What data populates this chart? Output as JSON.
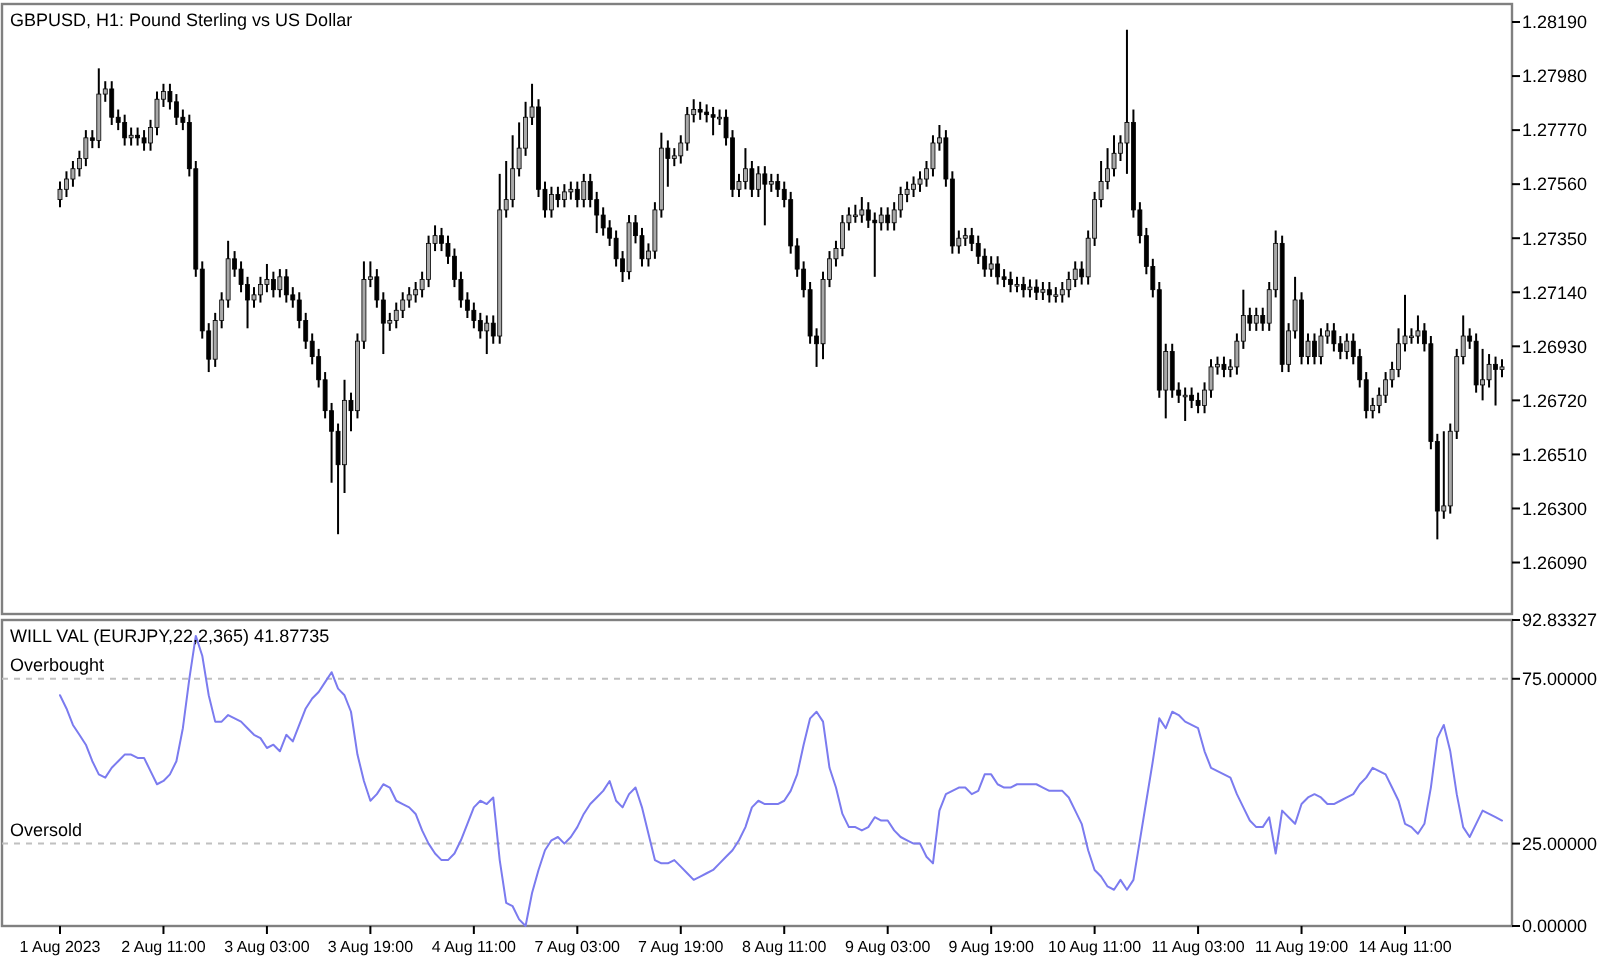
{
  "chart_data": [
    {
      "type": "candlestick",
      "title": "GBPUSD, H1:  Pound Sterling vs US Dollar",
      "tick_labels": "y",
      "categories": [
        "1 Aug 2023",
        null,
        null,
        null,
        null,
        null,
        null,
        null,
        null,
        null,
        null,
        null,
        null,
        null,
        null,
        null,
        "2 Aug 11:00",
        null,
        null,
        null,
        null,
        null,
        null,
        null,
        null,
        null,
        null,
        null,
        null,
        null,
        null,
        null,
        "3 Aug 03:00",
        null,
        null,
        null,
        null,
        null,
        null,
        null,
        null,
        null,
        null,
        null,
        null,
        null,
        null,
        null,
        "3 Aug 19:00",
        null,
        null,
        null,
        null,
        null,
        null,
        null,
        null,
        null,
        null,
        null,
        null,
        null,
        null,
        null,
        "4 Aug 11:00",
        null,
        null,
        null,
        null,
        null,
        null,
        null,
        null,
        null,
        null,
        null,
        null,
        null,
        null,
        null,
        "7 Aug 03:00",
        null,
        null,
        null,
        null,
        null,
        null,
        null,
        null,
        null,
        null,
        null,
        null,
        null,
        null,
        null,
        "7 Aug 19:00",
        null,
        null,
        null,
        null,
        null,
        null,
        null,
        null,
        null,
        null,
        null,
        null,
        null,
        null,
        null,
        "8 Aug 11:00",
        null,
        null,
        null,
        null,
        null,
        null,
        null,
        null,
        null,
        null,
        null,
        null,
        null,
        null,
        null,
        "9 Aug 03:00",
        null,
        null,
        null,
        null,
        null,
        null,
        null,
        null,
        null,
        null,
        null,
        null,
        null,
        null,
        null,
        "9 Aug 19:00",
        null,
        null,
        null,
        null,
        null,
        null,
        null,
        null,
        null,
        null,
        null,
        null,
        null,
        null,
        null,
        "10 Aug 11:00",
        null,
        null,
        null,
        null,
        null,
        null,
        null,
        null,
        null,
        null,
        null,
        null,
        null,
        null,
        null,
        "11 Aug 03:00",
        null,
        null,
        null,
        null,
        null,
        null,
        null,
        null,
        null,
        null,
        null,
        null,
        null,
        null,
        null,
        "11 Aug 19:00",
        null,
        null,
        null,
        null,
        null,
        null,
        null,
        null,
        null,
        null,
        null,
        null,
        null,
        null,
        null,
        "14 Aug 11:00",
        null,
        null,
        null,
        null,
        null,
        null,
        null,
        null,
        null,
        null,
        null,
        null,
        null,
        null,
        null
      ],
      "ylim": [
        1.2589,
        1.2826
      ],
      "yticks": [
        {
          "value": 1.2819,
          "label": "1.28190"
        },
        {
          "value": 1.2798,
          "label": "1.27980"
        },
        {
          "value": 1.2777,
          "label": "1.27770"
        },
        {
          "value": 1.2756,
          "label": "1.27560"
        },
        {
          "value": 1.2735,
          "label": "1.27350"
        },
        {
          "value": 1.2714,
          "label": "1.27140"
        },
        {
          "value": 1.2693,
          "label": "1.26930"
        },
        {
          "value": 1.2672,
          "label": "1.26720"
        },
        {
          "value": 1.2651,
          "label": "1.26510"
        },
        {
          "value": 1.263,
          "label": "1.26300"
        },
        {
          "value": 1.2609,
          "label": "1.26090"
        }
      ],
      "ohlc": [
        [
          1.275,
          1.2757,
          1.2747,
          1.2754
        ],
        [
          1.2754,
          1.2761,
          1.2751,
          1.2758
        ],
        [
          1.2758,
          1.2765,
          1.2755,
          1.2762
        ],
        [
          1.2762,
          1.2769,
          1.2759,
          1.2766
        ],
        [
          1.2766,
          1.2777,
          1.2763,
          1.2774
        ],
        [
          1.2774,
          1.2777,
          1.277,
          1.2773
        ],
        [
          1.2773,
          1.2801,
          1.277,
          1.2791
        ],
        [
          1.2791,
          1.2796,
          1.2788,
          1.2793
        ],
        [
          1.2793,
          1.2796,
          1.2779,
          1.2782
        ],
        [
          1.2782,
          1.2785,
          1.2777,
          1.278
        ],
        [
          1.278,
          1.2783,
          1.2771,
          1.2774
        ],
        [
          1.2774,
          1.2778,
          1.2771,
          1.2775
        ],
        [
          1.2775,
          1.2778,
          1.2771,
          1.2774
        ],
        [
          1.2774,
          1.2777,
          1.2769,
          1.2772
        ],
        [
          1.2772,
          1.2781,
          1.2769,
          1.2778
        ],
        [
          1.2778,
          1.2792,
          1.2775,
          1.2789
        ],
        [
          1.2789,
          1.2795,
          1.2786,
          1.2792
        ],
        [
          1.2792,
          1.2795,
          1.2785,
          1.2788
        ],
        [
          1.2788,
          1.2791,
          1.2779,
          1.2782
        ],
        [
          1.2782,
          1.2785,
          1.2777,
          1.278
        ],
        [
          1.278,
          1.2783,
          1.2759,
          1.2762
        ],
        [
          1.2762,
          1.2765,
          1.272,
          1.2723
        ],
        [
          1.2723,
          1.2726,
          1.2696,
          1.2699
        ],
        [
          1.2699,
          1.2702,
          1.2683,
          1.2688
        ],
        [
          1.2688,
          1.2706,
          1.2685,
          1.2703
        ],
        [
          1.2703,
          1.2714,
          1.27,
          1.2711
        ],
        [
          1.2711,
          1.2734,
          1.2708,
          1.2727
        ],
        [
          1.2727,
          1.273,
          1.272,
          1.2723
        ],
        [
          1.2723,
          1.2726,
          1.2714,
          1.2717
        ],
        [
          1.2717,
          1.272,
          1.27,
          1.2711
        ],
        [
          1.2711,
          1.2716,
          1.2708,
          1.2713
        ],
        [
          1.2713,
          1.272,
          1.271,
          1.2717
        ],
        [
          1.2717,
          1.2725,
          1.2714,
          1.2719
        ],
        [
          1.2719,
          1.2722,
          1.2712,
          1.2715
        ],
        [
          1.2715,
          1.2723,
          1.2712,
          1.272
        ],
        [
          1.272,
          1.2723,
          1.271,
          1.2713
        ],
        [
          1.2713,
          1.2716,
          1.2708,
          1.2711
        ],
        [
          1.2711,
          1.2714,
          1.27,
          1.2703
        ],
        [
          1.2703,
          1.2706,
          1.2692,
          1.2695
        ],
        [
          1.2695,
          1.2698,
          1.2686,
          1.2689
        ],
        [
          1.2689,
          1.2692,
          1.2677,
          1.268
        ],
        [
          1.268,
          1.2683,
          1.2665,
          1.2668
        ],
        [
          1.2668,
          1.2671,
          1.264,
          1.266
        ],
        [
          1.266,
          1.2663,
          1.262,
          1.2647
        ],
        [
          1.2647,
          1.268,
          1.2636,
          1.2672
        ],
        [
          1.2672,
          1.2675,
          1.266,
          1.2668
        ],
        [
          1.2668,
          1.2698,
          1.2665,
          1.2695
        ],
        [
          1.2695,
          1.2726,
          1.2692,
          1.2719
        ],
        [
          1.2719,
          1.2726,
          1.2716,
          1.272
        ],
        [
          1.272,
          1.2723,
          1.2708,
          1.2711
        ],
        [
          1.2711,
          1.2714,
          1.269,
          1.2702
        ],
        [
          1.2702,
          1.2706,
          1.2699,
          1.2703
        ],
        [
          1.2703,
          1.271,
          1.27,
          1.2707
        ],
        [
          1.2707,
          1.2714,
          1.2704,
          1.2711
        ],
        [
          1.2711,
          1.2716,
          1.2708,
          1.2713
        ],
        [
          1.2713,
          1.2718,
          1.271,
          1.2715
        ],
        [
          1.2715,
          1.2722,
          1.2712,
          1.2719
        ],
        [
          1.2719,
          1.2736,
          1.2716,
          1.2733
        ],
        [
          1.2733,
          1.274,
          1.273,
          1.2736
        ],
        [
          1.2736,
          1.2739,
          1.273,
          1.2733
        ],
        [
          1.2733,
          1.2736,
          1.2725,
          1.2728
        ],
        [
          1.2728,
          1.2731,
          1.2716,
          1.2719
        ],
        [
          1.2719,
          1.2722,
          1.2708,
          1.2711
        ],
        [
          1.2711,
          1.2714,
          1.2704,
          1.2707
        ],
        [
          1.2707,
          1.271,
          1.27,
          1.2703
        ],
        [
          1.2703,
          1.2706,
          1.2696,
          1.2699
        ],
        [
          1.2699,
          1.2705,
          1.269,
          1.2702
        ],
        [
          1.2702,
          1.2705,
          1.2694,
          1.2697
        ],
        [
          1.2697,
          1.276,
          1.2694,
          1.2746
        ],
        [
          1.2746,
          1.2765,
          1.2743,
          1.275
        ],
        [
          1.275,
          1.2775,
          1.2747,
          1.2762
        ],
        [
          1.2762,
          1.278,
          1.2759,
          1.277
        ],
        [
          1.277,
          1.2788,
          1.2767,
          1.2782
        ],
        [
          1.2782,
          1.2795,
          1.2779,
          1.2786
        ],
        [
          1.2786,
          1.2789,
          1.2751,
          1.2754
        ],
        [
          1.2754,
          1.2757,
          1.2743,
          1.2746
        ],
        [
          1.2746,
          1.2755,
          1.2743,
          1.2752
        ],
        [
          1.2752,
          1.2755,
          1.2747,
          1.275
        ],
        [
          1.275,
          1.2756,
          1.2747,
          1.2753
        ],
        [
          1.2753,
          1.2757,
          1.275,
          1.2754
        ],
        [
          1.2754,
          1.2757,
          1.2747,
          1.275
        ],
        [
          1.275,
          1.276,
          1.2747,
          1.2757
        ],
        [
          1.2757,
          1.276,
          1.2747,
          1.275
        ],
        [
          1.275,
          1.2753,
          1.2737,
          1.2744
        ],
        [
          1.2744,
          1.2747,
          1.2736,
          1.2739
        ],
        [
          1.2739,
          1.2742,
          1.2732,
          1.2735
        ],
        [
          1.2735,
          1.2738,
          1.2724,
          1.2727
        ],
        [
          1.2727,
          1.273,
          1.2718,
          1.2722
        ],
        [
          1.2722,
          1.2744,
          1.2719,
          1.2741
        ],
        [
          1.2741,
          1.2744,
          1.2733,
          1.2736
        ],
        [
          1.2736,
          1.2739,
          1.2724,
          1.2727
        ],
        [
          1.2727,
          1.2733,
          1.2724,
          1.273
        ],
        [
          1.273,
          1.2749,
          1.2727,
          1.2746
        ],
        [
          1.2746,
          1.2776,
          1.2743,
          1.277
        ],
        [
          1.277,
          1.2773,
          1.2755,
          1.2766
        ],
        [
          1.2766,
          1.277,
          1.2763,
          1.2767
        ],
        [
          1.2767,
          1.2775,
          1.2764,
          1.2772
        ],
        [
          1.2772,
          1.2786,
          1.2769,
          1.2783
        ],
        [
          1.2783,
          1.2789,
          1.278,
          1.2785
        ],
        [
          1.2785,
          1.2788,
          1.2781,
          1.2784
        ],
        [
          1.2784,
          1.2787,
          1.278,
          1.2783
        ],
        [
          1.2783,
          1.2786,
          1.2775,
          1.2782
        ],
        [
          1.2782,
          1.2785,
          1.2779,
          1.2782
        ],
        [
          1.2782,
          1.2785,
          1.2771,
          1.2774
        ],
        [
          1.2774,
          1.2777,
          1.2751,
          1.2754
        ],
        [
          1.2754,
          1.276,
          1.2751,
          1.2757
        ],
        [
          1.2757,
          1.277,
          1.2754,
          1.2762
        ],
        [
          1.2762,
          1.2765,
          1.2751,
          1.2754
        ],
        [
          1.2754,
          1.2763,
          1.2751,
          1.276
        ],
        [
          1.276,
          1.2763,
          1.274,
          1.2756
        ],
        [
          1.2756,
          1.276,
          1.2753,
          1.2757
        ],
        [
          1.2757,
          1.276,
          1.2751,
          1.2754
        ],
        [
          1.2754,
          1.2757,
          1.2747,
          1.275
        ],
        [
          1.275,
          1.2753,
          1.2729,
          1.2732
        ],
        [
          1.2732,
          1.2735,
          1.272,
          1.2723
        ],
        [
          1.2723,
          1.2726,
          1.2712,
          1.2715
        ],
        [
          1.2715,
          1.2718,
          1.2694,
          1.2697
        ],
        [
          1.2697,
          1.27,
          1.2685,
          1.2694
        ],
        [
          1.2694,
          1.2722,
          1.2688,
          1.2719
        ],
        [
          1.2719,
          1.273,
          1.2716,
          1.2727
        ],
        [
          1.2727,
          1.2734,
          1.2724,
          1.2731
        ],
        [
          1.2731,
          1.2744,
          1.2728,
          1.2741
        ],
        [
          1.2741,
          1.2747,
          1.2738,
          1.2744
        ],
        [
          1.2744,
          1.2748,
          1.2741,
          1.2744
        ],
        [
          1.2744,
          1.2751,
          1.2741,
          1.2746
        ],
        [
          1.2746,
          1.2749,
          1.2739,
          1.2742
        ],
        [
          1.2742,
          1.2745,
          1.272,
          1.2741
        ],
        [
          1.2741,
          1.2747,
          1.2738,
          1.2744
        ],
        [
          1.2744,
          1.2747,
          1.2738,
          1.2741
        ],
        [
          1.2741,
          1.2749,
          1.2738,
          1.2746
        ],
        [
          1.2746,
          1.2755,
          1.2743,
          1.2752
        ],
        [
          1.2752,
          1.2757,
          1.2749,
          1.2754
        ],
        [
          1.2754,
          1.2759,
          1.2751,
          1.2756
        ],
        [
          1.2756,
          1.2761,
          1.2753,
          1.2758
        ],
        [
          1.2758,
          1.2765,
          1.2755,
          1.2762
        ],
        [
          1.2762,
          1.2775,
          1.2759,
          1.2772
        ],
        [
          1.2772,
          1.2779,
          1.2769,
          1.2774
        ],
        [
          1.2774,
          1.2777,
          1.2755,
          1.2758
        ],
        [
          1.2758,
          1.2761,
          1.2729,
          1.2732
        ],
        [
          1.2732,
          1.2738,
          1.2729,
          1.2735
        ],
        [
          1.2735,
          1.2739,
          1.2732,
          1.2736
        ],
        [
          1.2736,
          1.2739,
          1.273,
          1.2733
        ],
        [
          1.2733,
          1.2736,
          1.2725,
          1.2728
        ],
        [
          1.2728,
          1.2731,
          1.272,
          1.2723
        ],
        [
          1.2723,
          1.2728,
          1.272,
          1.2725
        ],
        [
          1.2725,
          1.2728,
          1.2717,
          1.272
        ],
        [
          1.272,
          1.2723,
          1.2716,
          1.2719
        ],
        [
          1.2719,
          1.2722,
          1.2714,
          1.2717
        ],
        [
          1.2717,
          1.272,
          1.2714,
          1.2717
        ],
        [
          1.2717,
          1.272,
          1.2712,
          1.2715
        ],
        [
          1.2715,
          1.2719,
          1.2712,
          1.2716
        ],
        [
          1.2716,
          1.2719,
          1.2711,
          1.2714
        ],
        [
          1.2714,
          1.2718,
          1.2711,
          1.2715
        ],
        [
          1.2715,
          1.2718,
          1.271,
          1.2713
        ],
        [
          1.2713,
          1.2716,
          1.271,
          1.2713
        ],
        [
          1.2713,
          1.2718,
          1.271,
          1.2715
        ],
        [
          1.2715,
          1.2722,
          1.2712,
          1.2719
        ],
        [
          1.2719,
          1.2726,
          1.2716,
          1.2723
        ],
        [
          1.2723,
          1.2726,
          1.2717,
          1.272
        ],
        [
          1.272,
          1.2738,
          1.2717,
          1.2735
        ],
        [
          1.2735,
          1.2753,
          1.2732,
          1.275
        ],
        [
          1.275,
          1.2765,
          1.2747,
          1.2757
        ],
        [
          1.2757,
          1.277,
          1.2754,
          1.2762
        ],
        [
          1.2762,
          1.2775,
          1.2759,
          1.2768
        ],
        [
          1.2768,
          1.2775,
          1.2765,
          1.2772
        ],
        [
          1.2772,
          1.2816,
          1.276,
          1.278
        ],
        [
          1.278,
          1.2785,
          1.2743,
          1.2746
        ],
        [
          1.2746,
          1.2749,
          1.2733,
          1.2736
        ],
        [
          1.2736,
          1.2739,
          1.2721,
          1.2724
        ],
        [
          1.2724,
          1.2727,
          1.2712,
          1.2715
        ],
        [
          1.2715,
          1.2718,
          1.2673,
          1.2676
        ],
        [
          1.2676,
          1.2694,
          1.2665,
          1.2691
        ],
        [
          1.2691,
          1.2694,
          1.2673,
          1.2676
        ],
        [
          1.2676,
          1.2679,
          1.2671,
          1.2674
        ],
        [
          1.2674,
          1.2677,
          1.2664,
          1.2674
        ],
        [
          1.2674,
          1.2677,
          1.2669,
          1.2672
        ],
        [
          1.2672,
          1.2675,
          1.2667,
          1.267
        ],
        [
          1.267,
          1.2679,
          1.2667,
          1.2676
        ],
        [
          1.2676,
          1.2688,
          1.2673,
          1.2685
        ],
        [
          1.2685,
          1.2689,
          1.2682,
          1.2686
        ],
        [
          1.2686,
          1.2689,
          1.2681,
          1.2684
        ],
        [
          1.2684,
          1.2688,
          1.2681,
          1.2685
        ],
        [
          1.2685,
          1.2698,
          1.2682,
          1.2695
        ],
        [
          1.2695,
          1.2715,
          1.2692,
          1.2705
        ],
        [
          1.2705,
          1.2708,
          1.2699,
          1.2702
        ],
        [
          1.2702,
          1.2708,
          1.2699,
          1.2705
        ],
        [
          1.2705,
          1.2708,
          1.2699,
          1.2702
        ],
        [
          1.2702,
          1.2718,
          1.2699,
          1.2715
        ],
        [
          1.2715,
          1.2738,
          1.2712,
          1.2733
        ],
        [
          1.2733,
          1.2736,
          1.2683,
          1.2686
        ],
        [
          1.2686,
          1.2702,
          1.2683,
          1.2699
        ],
        [
          1.2699,
          1.272,
          1.2696,
          1.2711
        ],
        [
          1.2711,
          1.2714,
          1.2686,
          1.2689
        ],
        [
          1.2689,
          1.2698,
          1.2686,
          1.2695
        ],
        [
          1.2695,
          1.2698,
          1.2686,
          1.2689
        ],
        [
          1.2689,
          1.27,
          1.2686,
          1.2697
        ],
        [
          1.2697,
          1.2702,
          1.2694,
          1.2699
        ],
        [
          1.2699,
          1.2702,
          1.2691,
          1.2694
        ],
        [
          1.2694,
          1.2697,
          1.2688,
          1.2691
        ],
        [
          1.2691,
          1.2698,
          1.2688,
          1.2695
        ],
        [
          1.2695,
          1.2698,
          1.2686,
          1.2689
        ],
        [
          1.2689,
          1.2692,
          1.2677,
          1.268
        ],
        [
          1.268,
          1.2683,
          1.2665,
          1.2668
        ],
        [
          1.2668,
          1.2673,
          1.2665,
          1.267
        ],
        [
          1.267,
          1.2677,
          1.2667,
          1.2674
        ],
        [
          1.2674,
          1.2683,
          1.2671,
          1.268
        ],
        [
          1.268,
          1.2687,
          1.2677,
          1.2684
        ],
        [
          1.2684,
          1.27,
          1.2681,
          1.2694
        ],
        [
          1.2694,
          1.2713,
          1.2691,
          1.2697
        ],
        [
          1.2697,
          1.27,
          1.2694,
          1.2697
        ],
        [
          1.2697,
          1.2705,
          1.2694,
          1.2699
        ],
        [
          1.2699,
          1.2702,
          1.2691,
          1.2694
        ],
        [
          1.2694,
          1.2697,
          1.2653,
          1.2656
        ],
        [
          1.2656,
          1.2659,
          1.2618,
          1.2629
        ],
        [
          1.2629,
          1.266,
          1.2626,
          1.2631
        ],
        [
          1.2631,
          1.2663,
          1.2628,
          1.266
        ],
        [
          1.266,
          1.2692,
          1.2657,
          1.2689
        ],
        [
          1.2689,
          1.2705,
          1.2686,
          1.2697
        ],
        [
          1.2697,
          1.27,
          1.2692,
          1.2695
        ],
        [
          1.2695,
          1.2698,
          1.2675,
          1.2678
        ],
        [
          1.2678,
          1.2692,
          1.2672,
          1.268
        ],
        [
          1.268,
          1.269,
          1.2677,
          1.2686
        ],
        [
          1.2686,
          1.2689,
          1.267,
          1.2684
        ],
        [
          1.2684,
          1.2688,
          1.2681,
          1.2685
        ]
      ]
    },
    {
      "type": "line",
      "title": "WILL VAL (EURJPY,22,2,365) 41.87735",
      "categories": [
        "1 Aug 2023",
        null,
        null,
        null,
        null,
        null,
        null,
        null,
        null,
        null,
        null,
        null,
        null,
        null,
        null,
        null,
        "2 Aug 11:00",
        null,
        null,
        null,
        null,
        null,
        null,
        null,
        null,
        null,
        null,
        null,
        null,
        null,
        null,
        null,
        "3 Aug 03:00",
        null,
        null,
        null,
        null,
        null,
        null,
        null,
        null,
        null,
        null,
        null,
        null,
        null,
        null,
        null,
        "3 Aug 19:00",
        null,
        null,
        null,
        null,
        null,
        null,
        null,
        null,
        null,
        null,
        null,
        null,
        null,
        null,
        null,
        "4 Aug 11:00",
        null,
        null,
        null,
        null,
        null,
        null,
        null,
        null,
        null,
        null,
        null,
        null,
        null,
        null,
        null,
        "7 Aug 03:00",
        null,
        null,
        null,
        null,
        null,
        null,
        null,
        null,
        null,
        null,
        null,
        null,
        null,
        null,
        null,
        "7 Aug 19:00",
        null,
        null,
        null,
        null,
        null,
        null,
        null,
        null,
        null,
        null,
        null,
        null,
        null,
        null,
        null,
        "8 Aug 11:00",
        null,
        null,
        null,
        null,
        null,
        null,
        null,
        null,
        null,
        null,
        null,
        null,
        null,
        null,
        null,
        "9 Aug 03:00",
        null,
        null,
        null,
        null,
        null,
        null,
        null,
        null,
        null,
        null,
        null,
        null,
        null,
        null,
        null,
        "9 Aug 19:00",
        null,
        null,
        null,
        null,
        null,
        null,
        null,
        null,
        null,
        null,
        null,
        null,
        null,
        null,
        null,
        "10 Aug 11:00",
        null,
        null,
        null,
        null,
        null,
        null,
        null,
        null,
        null,
        null,
        null,
        null,
        null,
        null,
        null,
        "11 Aug 03:00",
        null,
        null,
        null,
        null,
        null,
        null,
        null,
        null,
        null,
        null,
        null,
        null,
        null,
        null,
        null,
        "11 Aug 19:00",
        null,
        null,
        null,
        null,
        null,
        null,
        null,
        null,
        null,
        null,
        null,
        null,
        null,
        null,
        null,
        "14 Aug 11:00",
        null,
        null,
        null,
        null,
        null,
        null,
        null,
        null,
        null,
        null,
        null,
        null,
        null,
        null,
        null
      ],
      "ylim": [
        0,
        92.83327
      ],
      "yticks": [
        {
          "value": 92.83327,
          "label": "92.83327"
        },
        {
          "value": 75,
          "label": "75.00000"
        },
        {
          "value": 25,
          "label": "25.00000"
        },
        {
          "value": 0,
          "label": "0.00000"
        }
      ],
      "ref_lines": [
        {
          "axis": "y",
          "value": 75,
          "label": "Overbought",
          "color": "#c0c0c0",
          "line_style": "dashed"
        },
        {
          "axis": "y",
          "value": 25,
          "label": "Oversold",
          "color": "#c0c0c0",
          "line_style": "dashed"
        }
      ],
      "series": [
        {
          "color": "#7b7bef",
          "values": [
            70,
            66,
            61,
            58,
            55,
            50,
            46,
            45,
            48,
            50,
            52,
            52,
            51,
            51,
            47,
            43,
            44,
            46,
            50,
            60,
            75,
            88,
            82,
            70,
            62,
            62,
            64,
            63,
            62,
            60,
            58,
            57,
            54,
            55,
            53,
            58,
            56,
            61,
            66,
            69,
            71,
            74,
            77,
            72,
            70,
            65,
            52,
            44,
            38,
            40,
            43,
            42,
            38,
            37,
            36,
            34,
            29,
            25,
            22,
            20,
            20,
            22,
            26,
            31,
            36,
            38,
            37,
            39,
            20,
            7,
            6,
            2,
            0,
            10,
            17,
            23,
            26,
            27,
            25,
            27,
            30,
            34,
            37,
            39,
            41,
            44,
            38,
            36,
            40,
            42,
            36,
            28,
            20,
            19,
            19,
            20,
            18,
            16,
            14,
            15,
            16,
            17,
            19,
            21,
            23,
            26,
            30,
            36,
            38,
            37,
            37,
            37,
            38,
            41,
            46,
            55,
            63,
            65,
            62,
            48,
            42,
            34,
            30,
            30,
            29,
            30,
            33,
            32,
            32,
            29,
            27,
            26,
            25,
            25,
            21,
            19,
            35,
            40,
            41,
            42,
            42,
            40,
            41,
            46,
            46,
            43,
            42,
            42,
            43,
            43,
            43,
            43,
            42,
            41,
            41,
            41,
            39,
            35,
            31,
            23,
            17,
            15,
            12,
            11,
            14,
            11,
            14,
            26,
            38,
            50,
            63,
            60,
            65,
            64,
            62,
            61,
            60,
            53,
            48,
            47,
            46,
            45,
            40,
            36,
            32,
            30,
            30,
            33,
            22,
            35,
            33,
            31,
            37,
            39,
            40,
            39,
            37,
            37,
            38,
            39,
            40,
            43,
            45,
            48,
            47,
            46,
            42,
            38,
            31,
            30,
            28,
            31,
            42,
            57,
            61,
            53,
            40,
            30,
            27,
            31,
            35,
            34,
            33,
            32
          ]
        }
      ]
    }
  ]
}
